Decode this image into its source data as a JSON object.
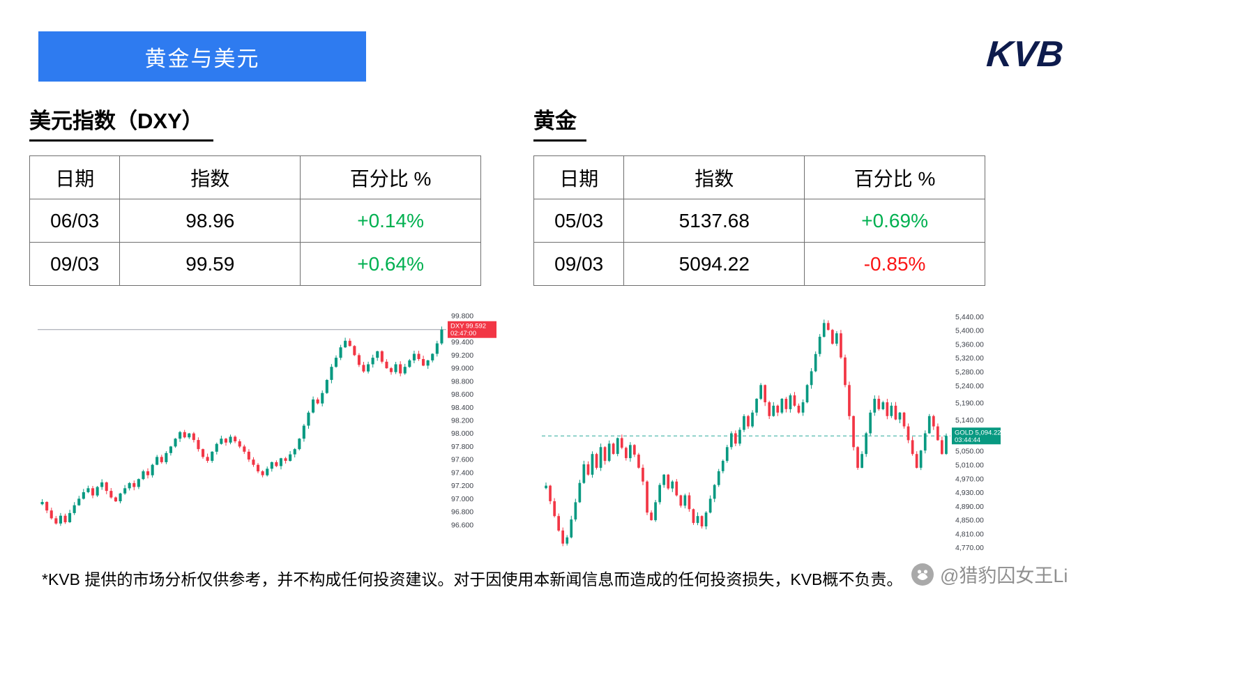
{
  "header": {
    "banner_title": "黄金与美元",
    "logo_text": "KVB"
  },
  "colors": {
    "banner_blue": "#2e7bf0",
    "positive_green": "#00b050",
    "negative_red": "#fa1414",
    "logo_navy": "#0d1b4c",
    "candle_up": "#089981",
    "candle_down": "#f23645"
  },
  "sections": {
    "dxy": {
      "title": "美元指数（DXY）",
      "table": {
        "headers": [
          "日期",
          "指数",
          "百分比 %"
        ],
        "rows": [
          {
            "date": "06/03",
            "index": "98.96",
            "pct": "+0.14%",
            "trend": "up"
          },
          {
            "date": "09/03",
            "index": "99.59",
            "pct": "+0.64%",
            "trend": "up"
          }
        ]
      }
    },
    "gold": {
      "title": "黄金",
      "table": {
        "headers": [
          "日期",
          "指数",
          "百分比 %"
        ],
        "rows": [
          {
            "date": "05/03",
            "index": "5137.68",
            "pct": "+0.69%",
            "trend": "up"
          },
          {
            "date": "09/03",
            "index": "5094.22",
            "pct": "-0.85%",
            "trend": "down"
          }
        ]
      }
    }
  },
  "chart_data": [
    {
      "type": "candlestick",
      "name": "dxy",
      "title": "美元指数（DXY）",
      "legend_position": "none",
      "grid": false,
      "ylim": [
        96.48,
        99.92
      ],
      "yticks": [
        "99.800",
        "99.600",
        "99.400",
        "99.200",
        "99.000",
        "98.800",
        "98.600",
        "98.400",
        "98.200",
        "98.000",
        "97.800",
        "97.600",
        "97.400",
        "97.200",
        "97.000",
        "96.800",
        "96.600"
      ],
      "closes": [
        96.95,
        96.82,
        96.7,
        96.62,
        96.74,
        96.64,
        96.78,
        96.9,
        97.0,
        97.1,
        97.16,
        97.05,
        97.18,
        97.25,
        97.12,
        97.02,
        96.96,
        97.08,
        97.16,
        97.24,
        97.18,
        97.3,
        97.42,
        97.36,
        97.52,
        97.64,
        97.56,
        97.7,
        97.8,
        97.92,
        98.02,
        97.94,
        98.0,
        97.9,
        97.76,
        97.64,
        97.58,
        97.72,
        97.84,
        97.92,
        97.86,
        97.95,
        97.88,
        97.8,
        97.72,
        97.6,
        97.52,
        97.42,
        97.36,
        97.46,
        97.56,
        97.5,
        97.62,
        97.58,
        97.68,
        97.76,
        97.92,
        98.12,
        98.32,
        98.52,
        98.46,
        98.62,
        98.82,
        99.02,
        99.16,
        99.32,
        99.42,
        99.34,
        99.2,
        99.05,
        98.95,
        99.06,
        99.16,
        99.26,
        99.1,
        99.0,
        98.94,
        99.06,
        98.92,
        99.02,
        99.12,
        99.22,
        99.14,
        99.04,
        99.12,
        99.22,
        99.38,
        99.59
      ],
      "price_line": {
        "symbol": "DXY",
        "price": "99.592",
        "time": "02:47:00",
        "value": 99.592,
        "color": "#9a9ea8",
        "dashed": false,
        "tag_bg": "#f23645"
      },
      "colors": {
        "up": "#089981",
        "down": "#f23645"
      }
    },
    {
      "type": "candlestick",
      "name": "gold",
      "title": "黄金",
      "legend_position": "none",
      "grid": false,
      "ylim": [
        4745,
        5465
      ],
      "yticks": [
        "5,440.00",
        "5,400.00",
        "5,360.00",
        "5,320.00",
        "5,280.00",
        "5,240.00",
        "5,190.00",
        "5,140.00",
        "5,050.00",
        "5,010.00",
        "4,970.00",
        "4,930.00",
        "4,890.00",
        "4,850.00",
        "4,810.00",
        "4,770.00"
      ],
      "closes": [
        4950,
        4905,
        4862,
        4820,
        4782,
        4800,
        4852,
        4902,
        4958,
        5012,
        4982,
        5042,
        5002,
        5062,
        5022,
        5072,
        5042,
        5088,
        5060,
        5030,
        5068,
        5040,
        5002,
        4962,
        4872,
        4850,
        4902,
        4952,
        4982,
        4942,
        4962,
        4922,
        4892,
        4922,
        4882,
        4842,
        4862,
        4832,
        4872,
        4912,
        4952,
        4992,
        5022,
        5062,
        5102,
        5072,
        5112,
        5152,
        5122,
        5162,
        5202,
        5242,
        5192,
        5152,
        5182,
        5162,
        5202,
        5172,
        5212,
        5182,
        5162,
        5192,
        5242,
        5282,
        5332,
        5382,
        5422,
        5402,
        5362,
        5392,
        5322,
        5242,
        5152,
        5062,
        5002,
        5042,
        5102,
        5162,
        5202,
        5172,
        5192,
        5152,
        5182,
        5142,
        5162,
        5122,
        5082,
        5042,
        5002,
        5052,
        5102,
        5152,
        5122,
        5082,
        5042,
        5094.22
      ],
      "price_line": {
        "symbol": "GOLD",
        "price": "5,094.22",
        "time": "03:44:44",
        "value": 5094.22,
        "color": "#2aa99a",
        "dashed": true,
        "tag_bg": "#089981"
      },
      "colors": {
        "up": "#089981",
        "down": "#f23645"
      }
    }
  ],
  "footer": {
    "disclaimer": "*KVB 提供的市场分析仅供参考，并不构成任何投资建议。对于因使用本新闻信息而造成的任何投资损失，KVB概不负责。",
    "watermark": "@猎豹囚女王Li"
  }
}
